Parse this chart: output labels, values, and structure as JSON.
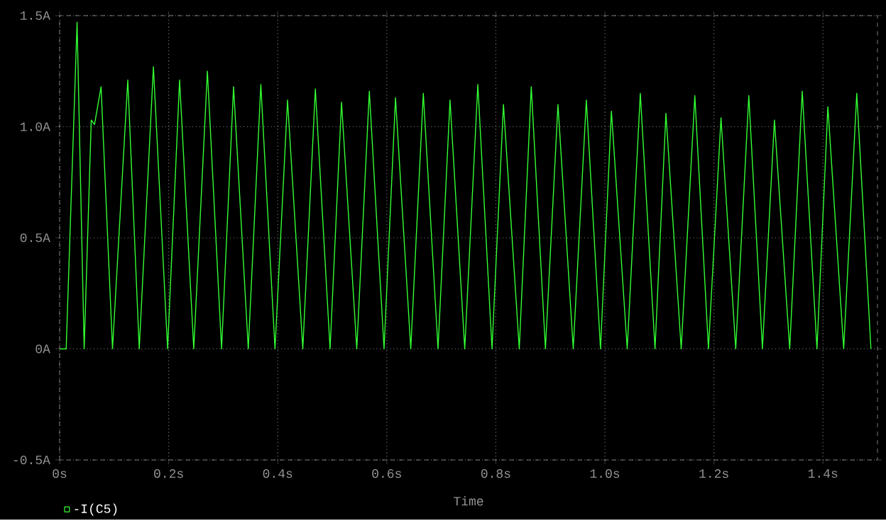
{
  "chart_data": {
    "type": "line",
    "xlabel": "Time",
    "x": [
      0,
      0.012,
      0.032,
      0.045,
      0.058,
      0.064,
      0.076,
      0.097,
      0.125,
      0.146,
      0.172,
      0.198,
      0.22,
      0.246,
      0.271,
      0.297,
      0.319,
      0.346,
      0.369,
      0.395,
      0.418,
      0.446,
      0.469,
      0.496,
      0.517,
      0.545,
      0.568,
      0.595,
      0.616,
      0.644,
      0.667,
      0.694,
      0.716,
      0.743,
      0.767,
      0.793,
      0.814,
      0.843,
      0.865,
      0.891,
      0.914,
      0.942,
      0.966,
      0.992,
      1.012,
      1.041,
      1.065,
      1.092,
      1.112,
      1.14,
      1.165,
      1.19,
      1.213,
      1.24,
      1.264,
      1.289,
      1.311,
      1.339,
      1.362,
      1.389,
      1.409,
      1.438,
      1.462,
      1.488
    ],
    "series": [
      {
        "name": "-I(C5)",
        "color": "#33ff33",
        "values": [
          0,
          0,
          1.47,
          0,
          1.03,
          1.01,
          1.18,
          0,
          1.21,
          0,
          1.27,
          0,
          1.21,
          0,
          1.25,
          0,
          1.18,
          0,
          1.19,
          0,
          1.12,
          0,
          1.17,
          0,
          1.11,
          0,
          1.16,
          0,
          1.13,
          0,
          1.15,
          0,
          1.12,
          0,
          1.19,
          0,
          1.1,
          0,
          1.18,
          0,
          1.1,
          0,
          1.12,
          0,
          1.07,
          0,
          1.15,
          0,
          1.06,
          0,
          1.14,
          0,
          1.04,
          0,
          1.14,
          0,
          1.03,
          0,
          1.16,
          0,
          1.09,
          0,
          1.15,
          0
        ]
      }
    ],
    "xlim": [
      0,
      1.5
    ],
    "ylim": [
      -0.5,
      1.5
    ],
    "xticks": [
      {
        "value": 0,
        "label": "0s"
      },
      {
        "value": 0.2,
        "label": "0.2s"
      },
      {
        "value": 0.4,
        "label": "0.4s"
      },
      {
        "value": 0.6,
        "label": "0.6s"
      },
      {
        "value": 0.8,
        "label": "0.8s"
      },
      {
        "value": 1.0,
        "label": "1.0s"
      },
      {
        "value": 1.2,
        "label": "1.2s"
      },
      {
        "value": 1.4,
        "label": "1.4s"
      }
    ],
    "yticks": [
      {
        "value": -0.5,
        "label": "-0.5A"
      },
      {
        "value": 0,
        "label": "0A"
      },
      {
        "value": 0.5,
        "label": "0.5A"
      },
      {
        "value": 1.0,
        "label": "1.0A"
      },
      {
        "value": 1.5,
        "label": "1.5A"
      }
    ],
    "grid": true,
    "legend": "bottom left",
    "line_style": "solid"
  }
}
